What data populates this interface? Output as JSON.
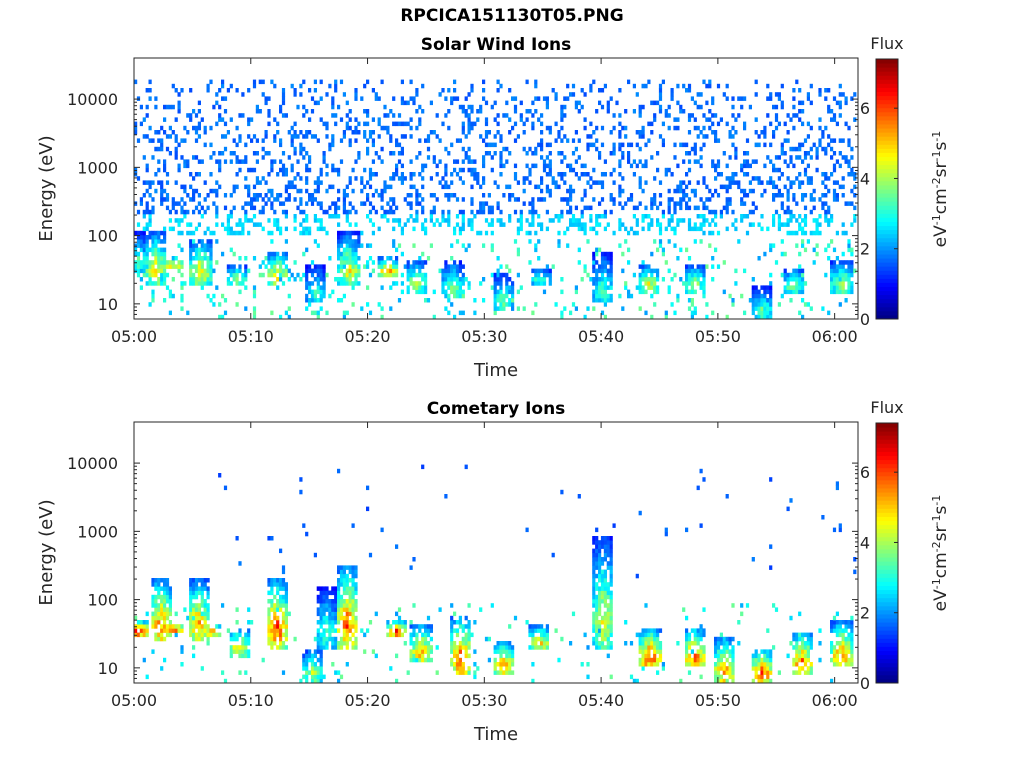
{
  "figure": {
    "title": "RPCICA151130T05.PNG"
  },
  "chart_data": [
    {
      "type": "heatmap",
      "title": "Solar Wind Ions",
      "xlabel": "Time",
      "ylabel": "Energy (eV)",
      "y_scale": "log",
      "ylim": [
        6,
        40000
      ],
      "xlim": [
        "05:00",
        "06:02"
      ],
      "x_ticks": [
        "05:00",
        "05:10",
        "05:20",
        "05:30",
        "05:40",
        "05:50",
        "06:00"
      ],
      "y_ticks": [
        "10",
        "100",
        "1000",
        "10000"
      ],
      "y_tick_values": [
        10,
        100,
        1000,
        10000
      ],
      "colorbar": {
        "label": "Flux",
        "unit": "eV-1cm-2sr-1s-1",
        "range": [
          0,
          7.4
        ],
        "ticks": [
          "0",
          "2",
          "4",
          "6"
        ],
        "tick_values": [
          0,
          2,
          4,
          6
        ],
        "colormap": "jet"
      },
      "sparse_background": {
        "energy_range": [
          100,
          20000
        ],
        "typical_flux": 1.7
      },
      "bursts": [
        {
          "t": 0.3,
          "e_lo": 30,
          "e_hi": 110,
          "flux": 3.5
        },
        {
          "t": 1.9,
          "e_lo": 20,
          "e_hi": 120,
          "flux": 4.8
        },
        {
          "t": 3.4,
          "e_lo": 35,
          "e_hi": 45,
          "flux": 5.6
        },
        {
          "t": 5.7,
          "e_lo": 20,
          "e_hi": 90,
          "flux": 5.0
        },
        {
          "t": 8.8,
          "e_lo": 18,
          "e_hi": 40,
          "flux": 4.0
        },
        {
          "t": 12.3,
          "e_lo": 20,
          "e_hi": 60,
          "flux": 5.2
        },
        {
          "t": 15.6,
          "e_lo": 10,
          "e_hi": 40,
          "flux": 3.2
        },
        {
          "t": 18.4,
          "e_lo": 20,
          "e_hi": 110,
          "flux": 4.7
        },
        {
          "t": 21.8,
          "e_lo": 25,
          "e_hi": 50,
          "flux": 5.5
        },
        {
          "t": 24.2,
          "e_lo": 15,
          "e_hi": 45,
          "flux": 4.4
        },
        {
          "t": 27.3,
          "e_lo": 12,
          "e_hi": 45,
          "flux": 3.9
        },
        {
          "t": 31.6,
          "e_lo": 8,
          "e_hi": 30,
          "flux": 3.6
        },
        {
          "t": 34.8,
          "e_lo": 20,
          "e_hi": 35,
          "flux": 3.5
        },
        {
          "t": 40.2,
          "e_lo": 10,
          "e_hi": 60,
          "flux": 3.4
        },
        {
          "t": 44.1,
          "e_lo": 15,
          "e_hi": 40,
          "flux": 4.6
        },
        {
          "t": 48.0,
          "e_lo": 15,
          "e_hi": 40,
          "flux": 4.2
        },
        {
          "t": 53.8,
          "e_lo": 6,
          "e_hi": 18,
          "flux": 3.6
        },
        {
          "t": 56.5,
          "e_lo": 15,
          "e_hi": 35,
          "flux": 4.0
        },
        {
          "t": 60.6,
          "e_lo": 15,
          "e_hi": 45,
          "flux": 4.4
        }
      ]
    },
    {
      "type": "heatmap",
      "title": "Cometary Ions",
      "xlabel": "Time",
      "ylabel": "Energy (eV)",
      "y_scale": "log",
      "ylim": [
        6,
        40000
      ],
      "xlim": [
        "05:00",
        "06:02"
      ],
      "x_ticks": [
        "05:00",
        "05:10",
        "05:20",
        "05:30",
        "05:40",
        "05:50",
        "06:00"
      ],
      "y_ticks": [
        "10",
        "100",
        "1000",
        "10000"
      ],
      "y_tick_values": [
        10,
        100,
        1000,
        10000
      ],
      "colorbar": {
        "label": "Flux",
        "unit": "eV-1cm-2sr-1s-1",
        "range": [
          0,
          7.4
        ],
        "ticks": [
          "0",
          "2",
          "4",
          "6"
        ],
        "tick_values": [
          0,
          2,
          4,
          6
        ],
        "colormap": "jet"
      },
      "sparse_background": {
        "energy_range": [
          200,
          9000
        ],
        "typical_flux": 1.6
      },
      "bursts": [
        {
          "t": 0.3,
          "e_lo": 30,
          "e_hi": 50,
          "flux": 7.0
        },
        {
          "t": 2.3,
          "e_lo": 25,
          "e_hi": 220,
          "flux": 5.6
        },
        {
          "t": 3.4,
          "e_lo": 35,
          "e_hi": 45,
          "flux": 6.6
        },
        {
          "t": 5.5,
          "e_lo": 25,
          "e_hi": 200,
          "flux": 5.5
        },
        {
          "t": 6.6,
          "e_lo": 30,
          "e_hi": 45,
          "flux": 6.0
        },
        {
          "t": 9.0,
          "e_lo": 15,
          "e_hi": 40,
          "flux": 5.0
        },
        {
          "t": 12.2,
          "e_lo": 20,
          "e_hi": 200,
          "flux": 6.4
        },
        {
          "t": 15.3,
          "e_lo": 6,
          "e_hi": 20,
          "flux": 4.2
        },
        {
          "t": 16.5,
          "e_lo": 20,
          "e_hi": 150,
          "flux": 3.5
        },
        {
          "t": 18.3,
          "e_lo": 20,
          "e_hi": 340,
          "flux": 6.0
        },
        {
          "t": 22.5,
          "e_lo": 30,
          "e_hi": 50,
          "flux": 6.4
        },
        {
          "t": 24.6,
          "e_lo": 12,
          "e_hi": 45,
          "flux": 5.4
        },
        {
          "t": 28.0,
          "e_lo": 8,
          "e_hi": 60,
          "flux": 6.2
        },
        {
          "t": 31.6,
          "e_lo": 8,
          "e_hi": 25,
          "flux": 5.8
        },
        {
          "t": 34.7,
          "e_lo": 18,
          "e_hi": 45,
          "flux": 5.0
        },
        {
          "t": 40.2,
          "e_lo": 20,
          "e_hi": 800,
          "flux": 4.5
        },
        {
          "t": 44.2,
          "e_lo": 10,
          "e_hi": 40,
          "flux": 6.4
        },
        {
          "t": 48.0,
          "e_lo": 10,
          "e_hi": 40,
          "flux": 6.0
        },
        {
          "t": 50.6,
          "e_lo": 6,
          "e_hi": 30,
          "flux": 5.6
        },
        {
          "t": 53.8,
          "e_lo": 6,
          "e_hi": 20,
          "flux": 6.2
        },
        {
          "t": 57.2,
          "e_lo": 8,
          "e_hi": 35,
          "flux": 6.0
        },
        {
          "t": 60.6,
          "e_lo": 10,
          "e_hi": 50,
          "flux": 5.8
        }
      ]
    }
  ]
}
